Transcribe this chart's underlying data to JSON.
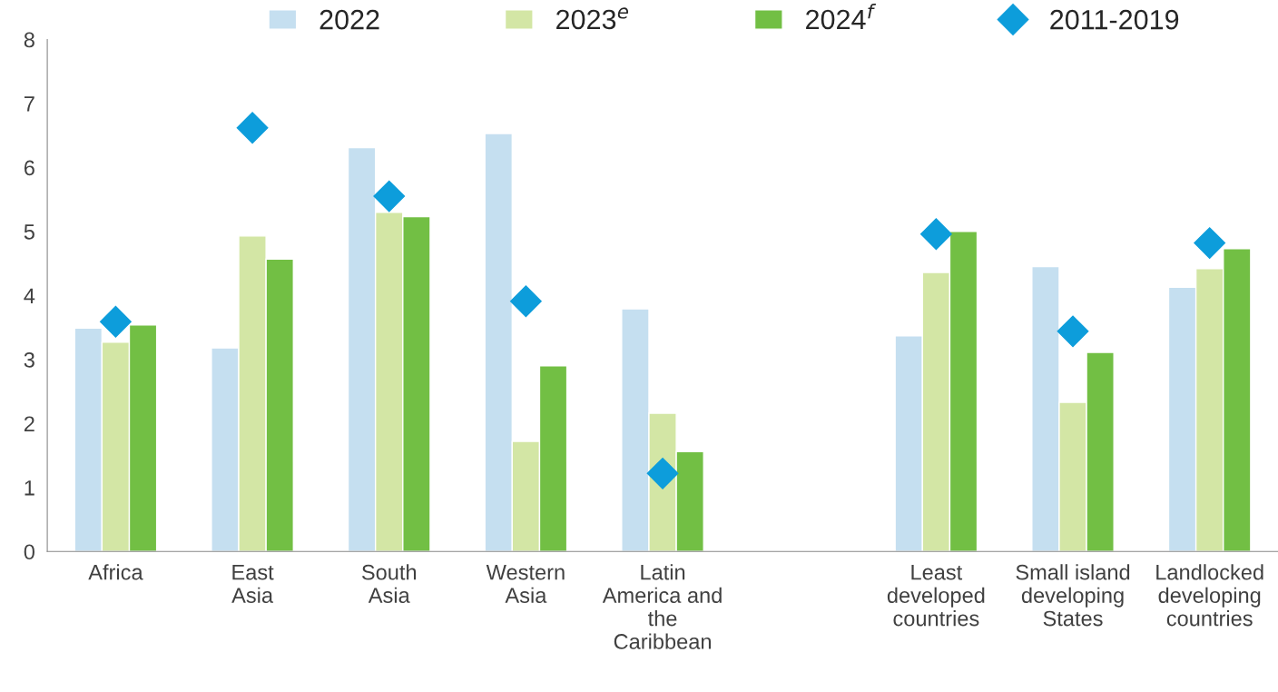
{
  "chart_data": {
    "type": "bar",
    "categories": [
      "Africa",
      "East\nAsia",
      "South\nAsia",
      "Western\nAsia",
      "Latin\nAmerica and\nthe\nCaribbean",
      null,
      "Least\ndeveloped\ncountries",
      "Small island\ndeveloping\nStates",
      "Landlocked\ndeveloping\ncountries"
    ],
    "series": [
      {
        "name": "2022",
        "color": "#c5dff0",
        "values": [
          3.49,
          3.18,
          6.31,
          6.53,
          3.79,
          null,
          3.37,
          4.45,
          4.13
        ]
      },
      {
        "name": "2023$^{e}$",
        "color": "#d3e6a5",
        "values": [
          3.27,
          4.93,
          5.3,
          1.72,
          2.16,
          null,
          4.36,
          2.33,
          4.42
        ]
      },
      {
        "name": "2024$^{f}$",
        "color": "#72bf44",
        "values": [
          3.54,
          4.57,
          5.23,
          2.9,
          1.56,
          null,
          5.0,
          3.11,
          4.73
        ]
      },
      {
        "name": "2011-2019",
        "type": "scatter",
        "marker": "diamond",
        "color": "#0d9ddb",
        "values": [
          3.59,
          6.62,
          5.55,
          3.91,
          1.22,
          null,
          4.96,
          3.44,
          4.82
        ]
      }
    ],
    "ylim": [
      0,
      8
    ],
    "yticks": [
      0,
      1,
      2,
      3,
      4,
      5,
      6,
      7,
      8
    ],
    "grid": false,
    "legend": "top"
  }
}
